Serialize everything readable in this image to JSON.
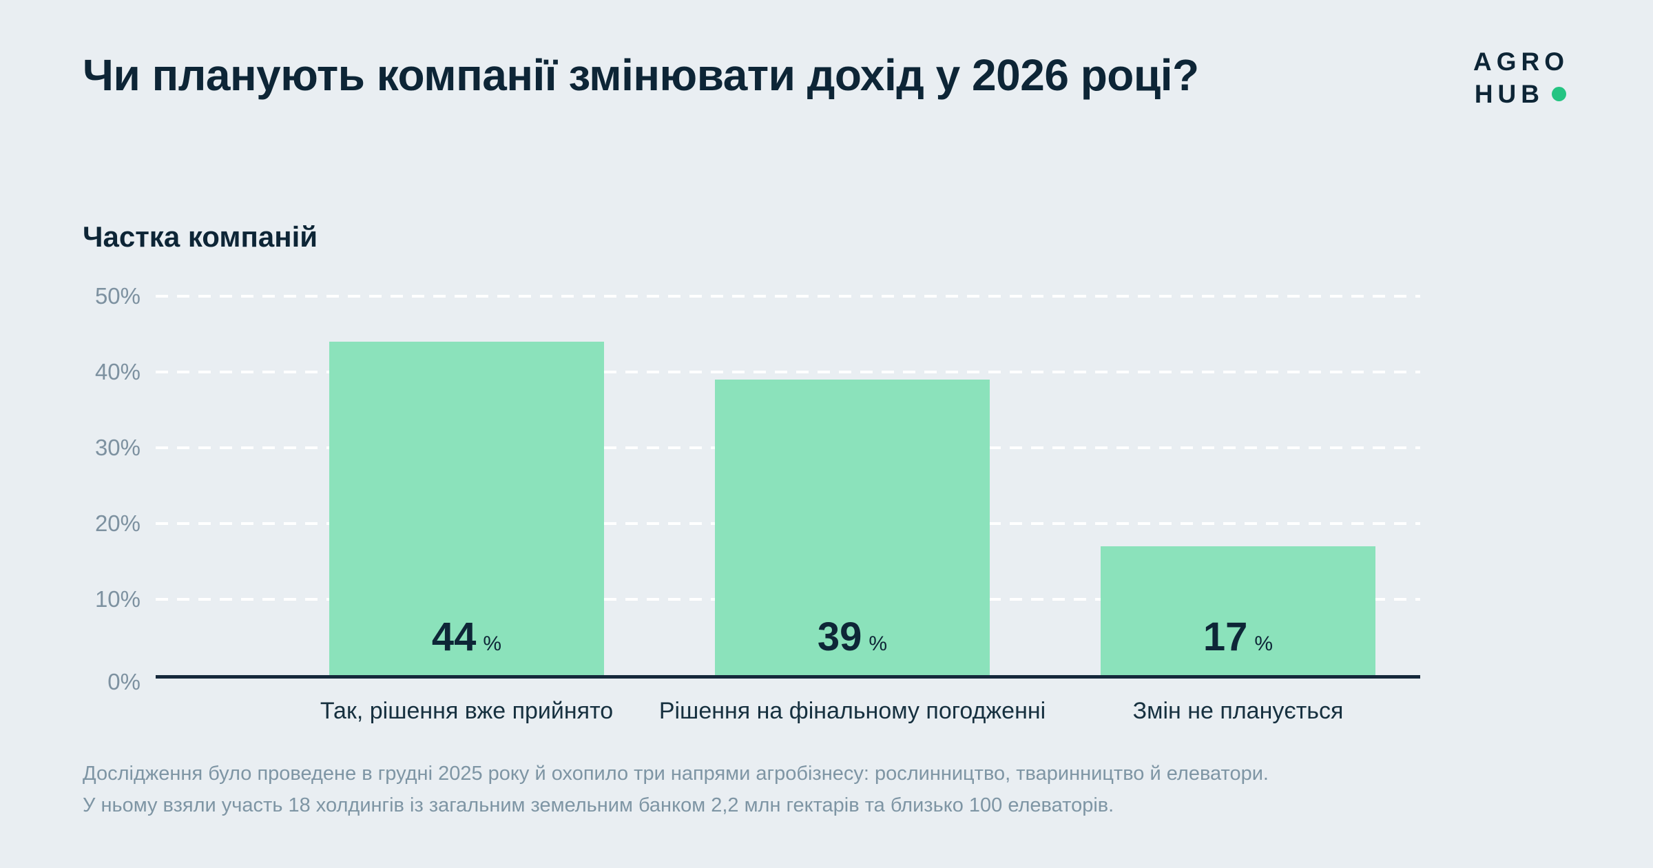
{
  "title": "Чи планують компанії змінювати дохід у 2026 році?",
  "logo": {
    "line1": "AGRO",
    "line2": "HUB"
  },
  "chart_data": {
    "type": "bar",
    "title": "Частка компаній",
    "ylabel": "Частка компаній",
    "xlabel": "",
    "categories": [
      "Так, рішення вже прийнято",
      "Рішення на фінальному погодженні",
      "Змін не планується"
    ],
    "values": [
      44,
      39,
      17
    ],
    "value_labels": [
      "44",
      "39",
      "17"
    ],
    "value_suffix": "%",
    "ylim": [
      0,
      50
    ],
    "yticks": [
      0,
      10,
      20,
      30,
      40,
      50
    ],
    "ytick_labels": [
      "0%",
      "10%",
      "20%",
      "30%",
      "40%",
      "50%"
    ],
    "grid": "horizontal-dashed",
    "legend": "none"
  },
  "colors": {
    "background": "#E9EEF2",
    "bar": "#8BE2BB",
    "axis": "#15293B",
    "text_dark": "#0D2536",
    "text_muted": "#7E95A4",
    "logo_dot": "#25C482"
  },
  "footnote": {
    "line1": "Дослідження було проведене в грудні 2025 року й охопило три напрями агробізнесу: рослинництво, тваринництво й елеватори.",
    "line2": "У ньому взяли участь 18 холдингів із загальним земельним банком 2,2 млн гектарів та близько 100 елеваторів."
  }
}
